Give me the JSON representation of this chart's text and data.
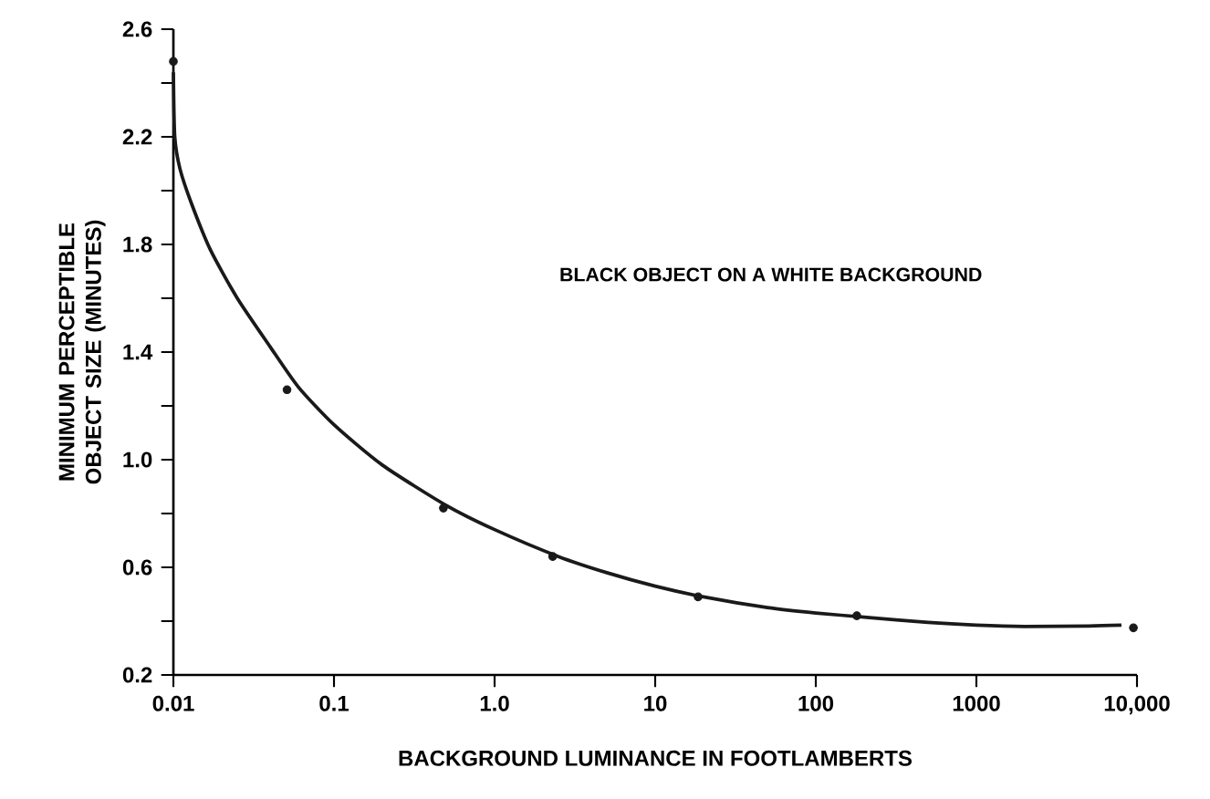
{
  "chart_data": {
    "type": "scatter",
    "xlabel": "BACKGROUND LUMINANCE IN FOOTLAMBERTS",
    "ylabel": "MINIMUM PERCEPTIBLE OBJECT SIZE (MINUTES)",
    "annotations": [
      "BLACK OBJECT ON A WHITE BACKGROUND"
    ],
    "log": "x",
    "marker": "circle",
    "grid": false,
    "xlim": [
      0.01,
      10000
    ],
    "ylim": [
      0.2,
      2.6
    ],
    "xticks": [
      0.01,
      0.1,
      {
        "value": 1,
        "label": "1.0"
      },
      10,
      100,
      1000,
      {
        "value": 10000,
        "label": "10,000"
      }
    ],
    "yticks": [
      0.2,
      {
        "value": 0.4,
        "label": null
      },
      0.6,
      {
        "value": 0.8,
        "label": null
      },
      {
        "value": 1,
        "label": "1.0"
      },
      {
        "value": 1.2,
        "label": null
      },
      1.4,
      {
        "value": 1.6,
        "label": null
      },
      1.8,
      {
        "value": 2.0,
        "label": null
      },
      2.2,
      {
        "value": 2.4,
        "label": null
      },
      2.6
    ],
    "series": [
      {
        "color": "#1a1a1a",
        "x": [
          0.01,
          0.051,
          0.48,
          2.3,
          18.5,
          180,
          9500
        ],
        "values": [
          2.48,
          1.26,
          0.82,
          0.64,
          0.49,
          0.42,
          0.375
        ]
      },
      {
        "type": "line",
        "color": "#1a1a1a",
        "marker": "none",
        "x": [
          0.01,
          0.0102,
          0.011,
          0.013,
          0.017,
          0.025,
          0.04,
          0.06,
          0.1,
          0.2,
          0.5,
          1,
          2.5,
          5,
          10,
          20,
          50,
          100,
          200,
          500,
          1000,
          2000,
          5000,
          8000
        ],
        "values": [
          2.44,
          2.2,
          2.08,
          1.95,
          1.78,
          1.6,
          1.42,
          1.27,
          1.13,
          0.98,
          0.83,
          0.74,
          0.64,
          0.58,
          0.53,
          0.49,
          0.45,
          0.43,
          0.415,
          0.395,
          0.385,
          0.38,
          0.382,
          0.385
        ]
      }
    ]
  }
}
